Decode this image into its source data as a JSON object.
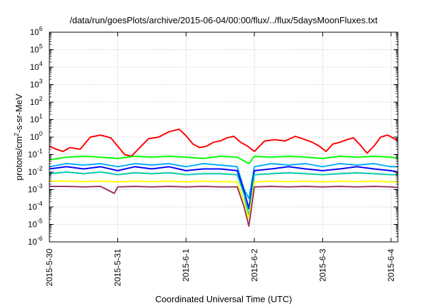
{
  "chart_data": {
    "type": "line",
    "title": "/data/run/goesPlots/archive/2015-06-04/00:00/flux/../flux/5daysMoonFluxes.txt",
    "xlabel": "Coordinated Universal Time (UTC)",
    "ylabel": "protons/cm²-s-sr-MeV",
    "ylabel_main": "protons/cm",
    "ylabel_sup": "2",
    "ylabel_rest": "-s-sr-MeV",
    "xlim": [
      0,
      5.1
    ],
    "ylim_exp": [
      -6,
      6
    ],
    "yscale": "log",
    "grid": true,
    "x_ticks": [
      {
        "x": 0,
        "label": "2015-5-30"
      },
      {
        "x": 1,
        "label": "2015-5-31"
      },
      {
        "x": 2,
        "label": "2015-6-1"
      },
      {
        "x": 3,
        "label": "2015-6-2"
      },
      {
        "x": 4,
        "label": "2015-6-3"
      },
      {
        "x": 5,
        "label": "2015-6-4"
      }
    ],
    "y_ticks": [
      {
        "exp": -6,
        "label": "10",
        "sup": "-6"
      },
      {
        "exp": -5,
        "label": "10",
        "sup": "-5"
      },
      {
        "exp": -4,
        "label": "10",
        "sup": "-4"
      },
      {
        "exp": -3,
        "label": "10",
        "sup": "-3"
      },
      {
        "exp": -2,
        "label": "10",
        "sup": "-2"
      },
      {
        "exp": -1,
        "label": "10",
        "sup": "-1"
      },
      {
        "exp": 0,
        "label": "10",
        "sup": "0"
      },
      {
        "exp": 1,
        "label": "10",
        "sup": "1"
      },
      {
        "exp": 2,
        "label": "10",
        "sup": "2"
      },
      {
        "exp": 3,
        "label": "10",
        "sup": "3"
      },
      {
        "exp": 4,
        "label": "10",
        "sup": "4"
      },
      {
        "exp": 5,
        "label": "10",
        "sup": "5"
      },
      {
        "exp": 6,
        "label": "10",
        "sup": "6"
      }
    ],
    "series": [
      {
        "color": "#ff0000",
        "x": [
          0,
          0.1,
          0.2,
          0.3,
          0.45,
          0.6,
          0.75,
          0.9,
          1.0,
          1.1,
          1.2,
          1.3,
          1.45,
          1.6,
          1.75,
          1.9,
          2.0,
          2.1,
          2.2,
          2.3,
          2.4,
          2.5,
          2.6,
          2.7,
          2.8,
          2.9,
          3.0,
          3.15,
          3.3,
          3.45,
          3.6,
          3.75,
          3.85,
          3.95,
          4.05,
          4.15,
          4.25,
          4.35,
          4.45,
          4.55,
          4.65,
          4.75,
          4.85,
          4.95,
          5.05,
          5.1
        ],
        "y": [
          0.3,
          0.2,
          0.15,
          0.25,
          0.2,
          1.0,
          1.3,
          0.9,
          0.3,
          0.1,
          0.08,
          0.2,
          0.8,
          1.0,
          2.0,
          2.8,
          1.2,
          0.4,
          0.25,
          0.3,
          0.5,
          0.6,
          0.9,
          1.1,
          0.5,
          0.3,
          0.15,
          0.6,
          0.7,
          0.6,
          1.1,
          0.7,
          0.5,
          0.3,
          0.15,
          0.4,
          0.5,
          0.7,
          0.9,
          0.35,
          0.12,
          0.3,
          1.0,
          1.3,
          0.8,
          0.6
        ]
      },
      {
        "color": "#00ff00",
        "x": [
          0,
          0.25,
          0.5,
          0.75,
          1.0,
          1.25,
          1.5,
          1.75,
          2.0,
          2.25,
          2.5,
          2.75,
          2.92,
          3.0,
          3.25,
          3.5,
          3.75,
          4.0,
          4.25,
          4.5,
          4.75,
          5.0,
          5.1
        ],
        "y": [
          0.05,
          0.07,
          0.08,
          0.07,
          0.06,
          0.08,
          0.07,
          0.08,
          0.07,
          0.06,
          0.08,
          0.07,
          0.03,
          0.08,
          0.07,
          0.08,
          0.07,
          0.06,
          0.08,
          0.07,
          0.08,
          0.07,
          0.06
        ]
      },
      {
        "color": "#00aaff",
        "x": [
          0,
          0.25,
          0.5,
          0.75,
          1.0,
          1.25,
          1.5,
          1.75,
          2.0,
          2.25,
          2.5,
          2.75,
          2.85,
          2.92,
          3.0,
          3.25,
          3.5,
          3.75,
          4.0,
          4.25,
          4.5,
          4.75,
          5.0,
          5.1
        ],
        "y": [
          0.02,
          0.03,
          0.025,
          0.03,
          0.02,
          0.03,
          0.025,
          0.03,
          0.02,
          0.03,
          0.025,
          0.02,
          0.001,
          0.0003,
          0.02,
          0.03,
          0.025,
          0.03,
          0.02,
          0.03,
          0.025,
          0.03,
          0.02,
          0.02
        ]
      },
      {
        "color": "#0000ff",
        "x": [
          0,
          0.25,
          0.5,
          0.75,
          1.0,
          1.25,
          1.5,
          1.75,
          2.0,
          2.25,
          2.5,
          2.75,
          2.85,
          2.92,
          3.0,
          3.25,
          3.5,
          3.75,
          4.0,
          4.25,
          4.5,
          4.75,
          5.0,
          5.1
        ],
        "y": [
          0.015,
          0.02,
          0.015,
          0.02,
          0.012,
          0.02,
          0.015,
          0.02,
          0.012,
          0.015,
          0.015,
          0.012,
          0.0008,
          8e-05,
          0.012,
          0.015,
          0.02,
          0.015,
          0.012,
          0.015,
          0.02,
          0.015,
          0.012,
          0.01
        ]
      },
      {
        "color": "#00ccaa",
        "x": [
          0,
          0.25,
          0.5,
          0.75,
          1.0,
          1.25,
          1.5,
          1.75,
          2.0,
          2.25,
          2.5,
          2.75,
          2.85,
          2.92,
          3.0,
          3.25,
          3.5,
          3.75,
          4.0,
          4.25,
          4.5,
          4.75,
          5.0,
          5.1
        ],
        "y": [
          0.008,
          0.01,
          0.008,
          0.01,
          0.007,
          0.009,
          0.008,
          0.009,
          0.007,
          0.008,
          0.008,
          0.007,
          0.0005,
          3e-05,
          0.007,
          0.008,
          0.009,
          0.008,
          0.007,
          0.008,
          0.009,
          0.008,
          0.007,
          0.007
        ]
      },
      {
        "color": "#ffff00",
        "x": [
          0,
          0.25,
          0.5,
          0.75,
          1.0,
          1.25,
          1.5,
          1.75,
          2.0,
          2.25,
          2.5,
          2.75,
          2.85,
          2.92,
          3.0,
          3.25,
          3.5,
          3.75,
          4.0,
          4.25,
          4.5,
          4.75,
          5.0,
          5.1
        ],
        "y": [
          0.003,
          0.003,
          0.0028,
          0.003,
          0.0027,
          0.003,
          0.0028,
          0.003,
          0.0027,
          0.003,
          0.0028,
          0.0027,
          0.0002,
          2e-05,
          0.0027,
          0.003,
          0.0028,
          0.003,
          0.0027,
          0.003,
          0.0028,
          0.003,
          0.0027,
          0.0027
        ]
      },
      {
        "color": "#993366",
        "x": [
          0,
          0.25,
          0.5,
          0.75,
          0.95,
          1.0,
          1.25,
          1.5,
          1.75,
          2.0,
          2.25,
          2.5,
          2.75,
          2.85,
          2.92,
          3.0,
          3.25,
          3.5,
          3.75,
          4.0,
          4.25,
          4.5,
          4.75,
          5.0,
          5.1
        ],
        "y": [
          0.0015,
          0.0015,
          0.0014,
          0.0015,
          0.0006,
          0.0014,
          0.0015,
          0.0014,
          0.0015,
          0.0014,
          0.0015,
          0.0014,
          0.0014,
          0.0001,
          8e-06,
          0.0014,
          0.0015,
          0.0014,
          0.0015,
          0.0014,
          0.0015,
          0.0014,
          0.0015,
          0.0014,
          0.0013
        ]
      }
    ]
  }
}
